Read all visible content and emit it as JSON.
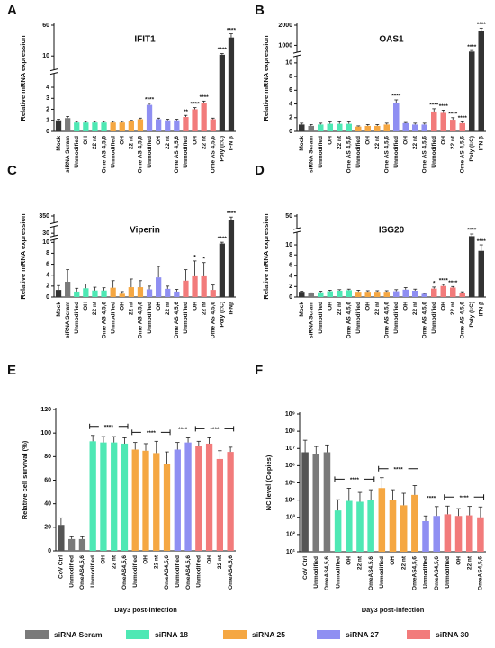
{
  "chart_data": [
    {
      "type": "bar",
      "panel_label": "A",
      "title": "IFIT1",
      "ylabel": "Relative mRNA expression",
      "categories": [
        "Mock",
        "siRNA Scram",
        "Unmodified",
        "OH",
        "22 nt",
        "Ome AS 4,5,6",
        "Unmodified",
        "OH",
        "22 nt",
        "Ome AS 4,5,6",
        "Unmodified",
        "OH",
        "22 nt",
        "Ome AS 4,5,6",
        "Unmodified",
        "OH",
        "22 nt",
        "Ome AS 4,5,6",
        "Poly (I:C)",
        "IFN β"
      ],
      "values": [
        1.0,
        1.2,
        0.8,
        0.8,
        0.8,
        0.8,
        0.8,
        0.8,
        0.9,
        1.1,
        2.4,
        1.1,
        1.0,
        1.0,
        1.3,
        2.0,
        2.6,
        1.1,
        12,
        40
      ],
      "errors": [
        0.1,
        0.15,
        0.1,
        0.1,
        0.1,
        0.1,
        0.1,
        0.1,
        0.1,
        0.1,
        0.15,
        0.1,
        0.1,
        0.1,
        0.15,
        0.15,
        0.15,
        0.1,
        2,
        6
      ],
      "significance": [
        null,
        null,
        null,
        null,
        null,
        null,
        null,
        null,
        null,
        null,
        "****",
        null,
        null,
        null,
        "**",
        "****",
        "****",
        null,
        "****",
        "****"
      ],
      "colors": [
        "#333333",
        "#7a7a7a",
        "#4ee8b4",
        "#4ee8b4",
        "#4ee8b4",
        "#4ee8b4",
        "#f5a742",
        "#f5a742",
        "#f5a742",
        "#f5a742",
        "#8f8ff2",
        "#8f8ff2",
        "#8f8ff2",
        "#8f8ff2",
        "#f27b7b",
        "#f27b7b",
        "#f27b7b",
        "#f27b7b",
        "#333333",
        "#333333"
      ],
      "ylim": [
        0,
        60
      ],
      "yticks": [
        0,
        1,
        2,
        3,
        4,
        10,
        60
      ]
    },
    {
      "type": "bar",
      "panel_label": "B",
      "title": "OAS1",
      "ylabel": "Relative mRNA expression",
      "categories": [
        "Mock",
        "siRNA Scram",
        "Unmodified",
        "OH",
        "22 nt",
        "Ome AS 4,5,6",
        "Unmodified",
        "OH",
        "22 nt",
        "Ome AS 4,5,6",
        "Unmodified",
        "OH",
        "22 nt",
        "Ome AS 4,5,6",
        "Unmodified",
        "OH",
        "22 nt",
        "Ome AS 4,5,6",
        "Poly (I:C)",
        "IFN β"
      ],
      "values": [
        1.0,
        0.8,
        1.0,
        1.1,
        1.1,
        1.1,
        0.7,
        0.8,
        0.8,
        1.0,
        4.2,
        1.2,
        1.0,
        1.0,
        2.9,
        2.7,
        1.7,
        1.2,
        650,
        1700
      ],
      "errors": [
        0.2,
        0.2,
        0.2,
        0.3,
        0.3,
        0.3,
        0.1,
        0.2,
        0.2,
        0.2,
        0.4,
        0.1,
        0.2,
        0.2,
        0.4,
        0.4,
        0.3,
        0.2,
        60,
        150
      ],
      "significance": [
        null,
        null,
        null,
        null,
        null,
        null,
        null,
        null,
        null,
        null,
        "****",
        null,
        null,
        null,
        "****",
        "****",
        "****",
        "****",
        "****",
        "****"
      ],
      "colors": [
        "#333333",
        "#7a7a7a",
        "#4ee8b4",
        "#4ee8b4",
        "#4ee8b4",
        "#4ee8b4",
        "#f5a742",
        "#f5a742",
        "#f5a742",
        "#f5a742",
        "#8f8ff2",
        "#8f8ff2",
        "#8f8ff2",
        "#8f8ff2",
        "#f27b7b",
        "#f27b7b",
        "#f27b7b",
        "#f27b7b",
        "#333333",
        "#333333"
      ],
      "ylim": [
        0,
        2000
      ],
      "yticks": [
        0,
        2,
        4,
        6,
        8,
        10,
        1000,
        2000
      ]
    },
    {
      "type": "bar",
      "panel_label": "C",
      "title": "Viperin",
      "ylabel": "Relative mRNA expression",
      "categories": [
        "Mock",
        "siRNA Scram",
        "Unmodified",
        "OH",
        "22 nt",
        "Ome AS 4,5,6",
        "Unmodified",
        "OH",
        "22 nt",
        "Ome AS 4,5,6",
        "Unmodified",
        "OH",
        "22 nt",
        "Ome AS 4,5,6",
        "Unmodified",
        "OH",
        "22 nt",
        "Ome AS 4,5,6",
        "Poly (I:C)",
        "IFNβ"
      ],
      "values": [
        1.3,
        2.8,
        1.0,
        1.6,
        1.2,
        1.2,
        1.7,
        0.6,
        1.8,
        1.8,
        1.4,
        3.6,
        1.5,
        1.0,
        3.0,
        3.8,
        3.8,
        1.3,
        9.8,
        280
      ],
      "errors": [
        0.8,
        2.2,
        0.6,
        0.8,
        0.6,
        0.5,
        1.3,
        0.4,
        1.5,
        1.2,
        0.6,
        2.0,
        0.5,
        0.4,
        2.0,
        2.8,
        2.5,
        0.9,
        0.6,
        50
      ],
      "significance": [
        null,
        null,
        null,
        null,
        null,
        null,
        null,
        null,
        null,
        null,
        null,
        null,
        null,
        null,
        null,
        "*",
        "*",
        null,
        "****",
        "****"
      ],
      "colors": [
        "#333333",
        "#7a7a7a",
        "#4ee8b4",
        "#4ee8b4",
        "#4ee8b4",
        "#4ee8b4",
        "#f5a742",
        "#f5a742",
        "#f5a742",
        "#f5a742",
        "#8f8ff2",
        "#8f8ff2",
        "#8f8ff2",
        "#8f8ff2",
        "#f27b7b",
        "#f27b7b",
        "#f27b7b",
        "#f27b7b",
        "#333333",
        "#333333"
      ],
      "ylim": [
        0,
        350
      ],
      "yticks": [
        0,
        2,
        4,
        6,
        8,
        10,
        30,
        350
      ]
    },
    {
      "type": "bar",
      "panel_label": "D",
      "title": "ISG20",
      "ylabel": "Relative mRNA expression",
      "categories": [
        "Mock",
        "siRNA Scram",
        "Unmodified",
        "OH",
        "22 nt",
        "Ome AS 4,5,6",
        "Unmodified",
        "OH",
        "22 nt",
        "Ome AS 4,5,6",
        "Unmodified",
        "OH",
        "22 nt",
        "Ome AS 4,5,6",
        "Unmodified",
        "OH",
        "22 nt",
        "Ome AS 4,5,6",
        "Poly (I:C)",
        "IFN β"
      ],
      "values": [
        1.0,
        0.7,
        0.9,
        1.1,
        1.2,
        1.3,
        1.0,
        1.0,
        1.0,
        1.0,
        1.1,
        1.4,
        1.2,
        0.6,
        1.6,
        2.1,
        1.8,
        0.8,
        22,
        8.8
      ],
      "errors": [
        0.1,
        0.1,
        0.2,
        0.2,
        0.2,
        0.2,
        0.3,
        0.2,
        0.2,
        0.2,
        0.3,
        0.4,
        0.3,
        0.1,
        0.3,
        0.3,
        0.2,
        0.2,
        3,
        1.2
      ],
      "significance": [
        null,
        null,
        null,
        null,
        null,
        null,
        null,
        null,
        null,
        null,
        null,
        null,
        null,
        null,
        "*",
        "****",
        "****",
        null,
        "****",
        "****"
      ],
      "colors": [
        "#333333",
        "#7a7a7a",
        "#4ee8b4",
        "#4ee8b4",
        "#4ee8b4",
        "#4ee8b4",
        "#f5a742",
        "#f5a742",
        "#f5a742",
        "#f5a742",
        "#8f8ff2",
        "#8f8ff2",
        "#8f8ff2",
        "#8f8ff2",
        "#f27b7b",
        "#f27b7b",
        "#f27b7b",
        "#f27b7b",
        "#333333",
        "#333333"
      ],
      "ylim": [
        0,
        50
      ],
      "yticks": [
        0,
        2,
        4,
        6,
        8,
        10,
        50
      ]
    },
    {
      "type": "bar",
      "panel_label": "E",
      "ylabel": "Relative cell survival (%)",
      "xlabel": "Day3 post-infection",
      "categories": [
        "CoV Ctrl",
        "Unmodified",
        "OmeAS4,5,6",
        "Unmodified",
        "OH",
        "22 nt",
        "OmeAS4,5,6",
        "Unmodified",
        "OH",
        "22 nt",
        "OmeAS4,5,6",
        "Unmodified",
        "OmeAS4,5,6",
        "Unmodified",
        "OH",
        "22 nt",
        "OmeAS4,5,6"
      ],
      "values": [
        22,
        10,
        10,
        93,
        92,
        92,
        91,
        86,
        85,
        83,
        74,
        86,
        92,
        89,
        91,
        78,
        84
      ],
      "errors": [
        6,
        2,
        2,
        5,
        5,
        5,
        5,
        6,
        6,
        10,
        10,
        6,
        4,
        4,
        5,
        7,
        4
      ],
      "colors": [
        "#555555",
        "#7a7a7a",
        "#7a7a7a",
        "#4ee8b4",
        "#4ee8b4",
        "#4ee8b4",
        "#4ee8b4",
        "#f5a742",
        "#f5a742",
        "#f5a742",
        "#f5a742",
        "#8f8ff2",
        "#8f8ff2",
        "#f27b7b",
        "#f27b7b",
        "#f27b7b",
        "#f27b7b"
      ],
      "brackets": [
        "****",
        "****",
        "****",
        "****"
      ],
      "ylim": [
        0,
        120
      ],
      "yticks": [
        0,
        20,
        40,
        60,
        80,
        100,
        120
      ]
    },
    {
      "type": "bar",
      "panel_label": "F",
      "ylabel": "NC level (Copies)",
      "xlabel": "Day3 post-infection",
      "log_scale": true,
      "categories": [
        "CoV Ctrl",
        "Unmodified",
        "OmeAS4,5,6",
        "Unmodified",
        "OH",
        "22 nt",
        "OmeAS4,5,6",
        "Unmodified",
        "OH",
        "22 nt",
        "OmeAS4,5,6",
        "Unmodified",
        "OmeAS4,5,6",
        "Unmodified",
        "OH",
        "22 nt",
        "OmeAS4,5,6"
      ],
      "values": [
        6000000,
        5000000,
        6000000,
        2500,
        9000,
        8000,
        10000,
        50000,
        10000,
        5000,
        20000,
        600,
        1200,
        1500,
        1200,
        1300,
        1000
      ],
      "errors": [
        24000000,
        8000000,
        10000000,
        8000,
        40000,
        20000,
        30000,
        150000,
        30000,
        20000,
        50000,
        600,
        3000,
        3000,
        2000,
        3000,
        3000
      ],
      "colors": [
        "#555555",
        "#7a7a7a",
        "#7a7a7a",
        "#4ee8b4",
        "#4ee8b4",
        "#4ee8b4",
        "#4ee8b4",
        "#f5a742",
        "#f5a742",
        "#f5a742",
        "#f5a742",
        "#8f8ff2",
        "#8f8ff2",
        "#f27b7b",
        "#f27b7b",
        "#f27b7b",
        "#f27b7b"
      ],
      "brackets": [
        "****",
        "****",
        "****",
        "****"
      ],
      "ylim": [
        10,
        1000000000
      ],
      "yticks": [
        {
          "value": 10,
          "label": "10¹"
        },
        {
          "value": 100,
          "label": "10²"
        },
        {
          "value": 1000,
          "label": "10³"
        },
        {
          "value": 10000,
          "label": "10⁴"
        },
        {
          "value": 100000,
          "label": "10⁵"
        },
        {
          "value": 1000000,
          "label": "10⁶"
        },
        {
          "value": 10000000,
          "label": "10⁷"
        },
        {
          "value": 100000000,
          "label": "10⁸"
        },
        {
          "value": 1000000000,
          "label": "10⁹"
        }
      ]
    }
  ],
  "legend": [
    {
      "name": "siRNA Scram",
      "color": "#7a7a7a"
    },
    {
      "name": "siRNA 18",
      "color": "#4ee8b4"
    },
    {
      "name": "siRNA 25",
      "color": "#f5a742"
    },
    {
      "name": "siRNA 27",
      "color": "#8f8ff2"
    },
    {
      "name": "siRNA 30",
      "color": "#f27b7b"
    }
  ]
}
